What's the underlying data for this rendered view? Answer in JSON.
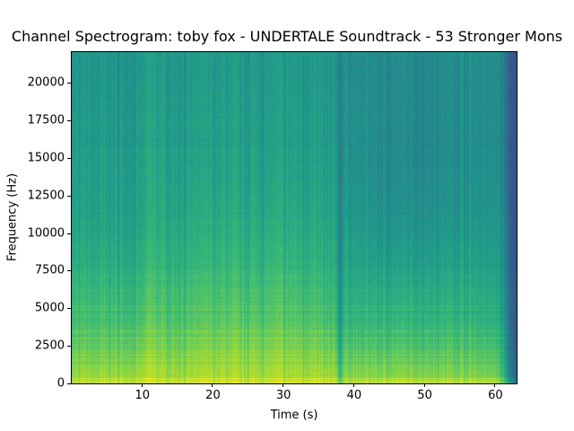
{
  "chart_data": {
    "type": "heatmap",
    "title": "Channel Spectrogram: toby fox - UNDERTALE Soundtrack - 53 Stronger Mons",
    "xlabel": "Time (s)",
    "ylabel": "Frequency (Hz)",
    "xlim": [
      0,
      63
    ],
    "ylim": [
      0,
      22050
    ],
    "xticks": [
      10,
      20,
      30,
      40,
      50,
      60
    ],
    "yticks": [
      0,
      2500,
      5000,
      7500,
      10000,
      12500,
      15000,
      17500,
      20000
    ],
    "colormap": "viridis",
    "grid": false,
    "intensity_normalized": {
      "time_s": [
        0,
        5,
        10,
        11,
        15,
        20,
        25,
        30,
        35,
        37.5,
        38,
        38.5,
        45,
        50,
        55,
        60,
        61,
        62,
        63
      ],
      "freq_hz": [
        0,
        500,
        2500,
        5000,
        10000,
        15000,
        22050
      ],
      "values_by_time": [
        [
          0.9,
          0.85,
          0.75,
          0.68,
          0.58,
          0.55,
          0.52
        ],
        [
          0.92,
          0.85,
          0.75,
          0.68,
          0.58,
          0.55,
          0.52
        ],
        [
          0.92,
          0.86,
          0.76,
          0.68,
          0.58,
          0.55,
          0.52
        ],
        [
          0.95,
          0.9,
          0.82,
          0.74,
          0.64,
          0.6,
          0.56
        ],
        [
          0.93,
          0.86,
          0.77,
          0.7,
          0.6,
          0.56,
          0.53
        ],
        [
          0.95,
          0.88,
          0.8,
          0.72,
          0.62,
          0.57,
          0.54
        ],
        [
          0.94,
          0.88,
          0.8,
          0.72,
          0.62,
          0.57,
          0.54
        ],
        [
          0.95,
          0.88,
          0.8,
          0.72,
          0.62,
          0.57,
          0.54
        ],
        [
          0.94,
          0.87,
          0.78,
          0.7,
          0.6,
          0.56,
          0.53
        ],
        [
          0.92,
          0.85,
          0.74,
          0.66,
          0.58,
          0.54,
          0.52
        ],
        [
          0.75,
          0.65,
          0.55,
          0.48,
          0.42,
          0.42,
          0.42
        ],
        [
          0.9,
          0.82,
          0.72,
          0.64,
          0.56,
          0.52,
          0.5
        ],
        [
          0.93,
          0.83,
          0.72,
          0.64,
          0.52,
          0.48,
          0.48
        ],
        [
          0.93,
          0.83,
          0.72,
          0.64,
          0.53,
          0.48,
          0.48
        ],
        [
          0.92,
          0.82,
          0.72,
          0.64,
          0.54,
          0.5,
          0.5
        ],
        [
          0.9,
          0.8,
          0.7,
          0.62,
          0.54,
          0.5,
          0.5
        ],
        [
          0.8,
          0.7,
          0.62,
          0.56,
          0.5,
          0.46,
          0.46
        ],
        [
          0.55,
          0.45,
          0.4,
          0.36,
          0.32,
          0.3,
          0.3
        ],
        [
          0.4,
          0.32,
          0.28,
          0.26,
          0.25,
          0.25,
          0.25
        ]
      ]
    }
  }
}
